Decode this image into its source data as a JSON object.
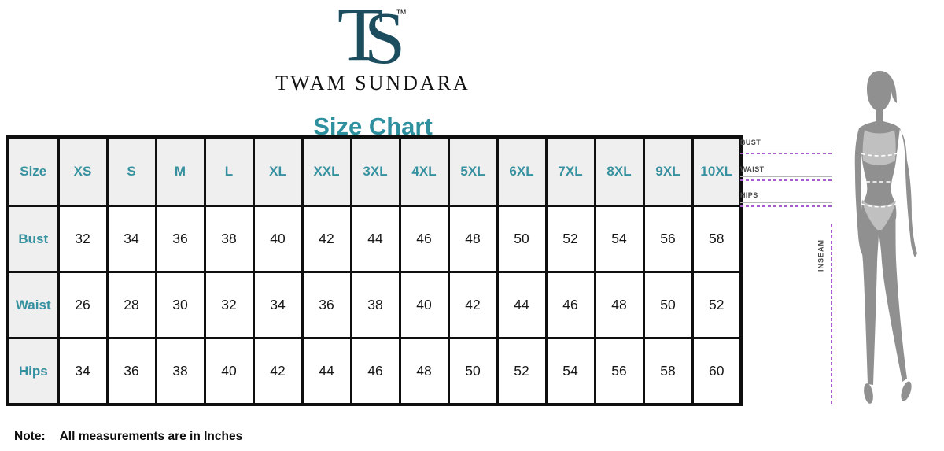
{
  "brand": {
    "monogram_t": "T",
    "monogram_s": "S",
    "trademark": "™",
    "name": "TWAM SUNDARA"
  },
  "chart_data": {
    "type": "table",
    "title": "Size Chart",
    "columns": [
      "Size",
      "XS",
      "S",
      "M",
      "L",
      "XL",
      "XXL",
      "3XL",
      "4XL",
      "5XL",
      "6XL",
      "7XL",
      "8XL",
      "9XL",
      "10XL"
    ],
    "rows": [
      {
        "label": "Bust",
        "values": [
          "32",
          "34",
          "36",
          "38",
          "40",
          "42",
          "44",
          "46",
          "48",
          "50",
          "52",
          "54",
          "56",
          "58"
        ]
      },
      {
        "label": "Waist",
        "values": [
          "26",
          "28",
          "30",
          "32",
          "34",
          "36",
          "38",
          "40",
          "42",
          "44",
          "46",
          "48",
          "50",
          "52"
        ]
      },
      {
        "label": "Hips",
        "values": [
          "34",
          "36",
          "38",
          "40",
          "42",
          "44",
          "46",
          "48",
          "50",
          "52",
          "54",
          "56",
          "58",
          "60"
        ]
      }
    ],
    "units": "Inches"
  },
  "figure_guide": {
    "labels": [
      "BUST",
      "WAIST",
      "HIPS"
    ],
    "inseam_label": "INSEAM"
  },
  "note": {
    "prefix": "Note:",
    "text": "All measurements are in Inches"
  },
  "colors": {
    "teal_text": "#2e909f",
    "monogram_teal": "#1b4d5f",
    "purple_dash": "#a85ad0",
    "table_border": "#0f0f0f",
    "header_bg": "#efefef",
    "body_gray": "#909090",
    "garment_gray": "#c0c0c0"
  }
}
